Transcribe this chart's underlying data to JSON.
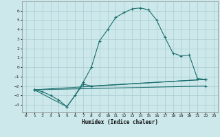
{
  "xlabel": "Humidex (Indice chaleur)",
  "ylabel": "",
  "bg_color": "#cce8ea",
  "grid_color": "#aed0d4",
  "line_color": "#1a6e6e",
  "xlim": [
    -0.5,
    23.5
  ],
  "ylim": [
    -4.8,
    7.0
  ],
  "yticks": [
    -4,
    -3,
    -2,
    -1,
    0,
    1,
    2,
    3,
    4,
    5,
    6
  ],
  "xticks": [
    0,
    1,
    2,
    3,
    4,
    5,
    6,
    7,
    8,
    9,
    10,
    11,
    12,
    13,
    14,
    15,
    16,
    17,
    18,
    19,
    20,
    21,
    22,
    23
  ],
  "line1_x": [
    1,
    2,
    3,
    4,
    5,
    6,
    7,
    8,
    9,
    10,
    11,
    12,
    13,
    14,
    15,
    16,
    17,
    18,
    19,
    20,
    21,
    22
  ],
  "line1_y": [
    -2.4,
    -2.6,
    -3.0,
    -3.5,
    -4.2,
    -3.0,
    -1.6,
    0.0,
    2.8,
    4.0,
    5.3,
    5.8,
    6.2,
    6.3,
    6.1,
    5.0,
    3.2,
    1.5,
    1.2,
    1.3,
    -1.2,
    -1.3
  ],
  "line2_x": [
    1,
    5,
    7,
    8,
    22
  ],
  "line2_y": [
    -2.4,
    -4.2,
    -1.8,
    -2.0,
    -1.3
  ],
  "line3_x": [
    1,
    22
  ],
  "line3_y": [
    -2.4,
    -1.3
  ],
  "line4_x": [
    1,
    22
  ],
  "line4_y": [
    -2.4,
    -2.0
  ]
}
